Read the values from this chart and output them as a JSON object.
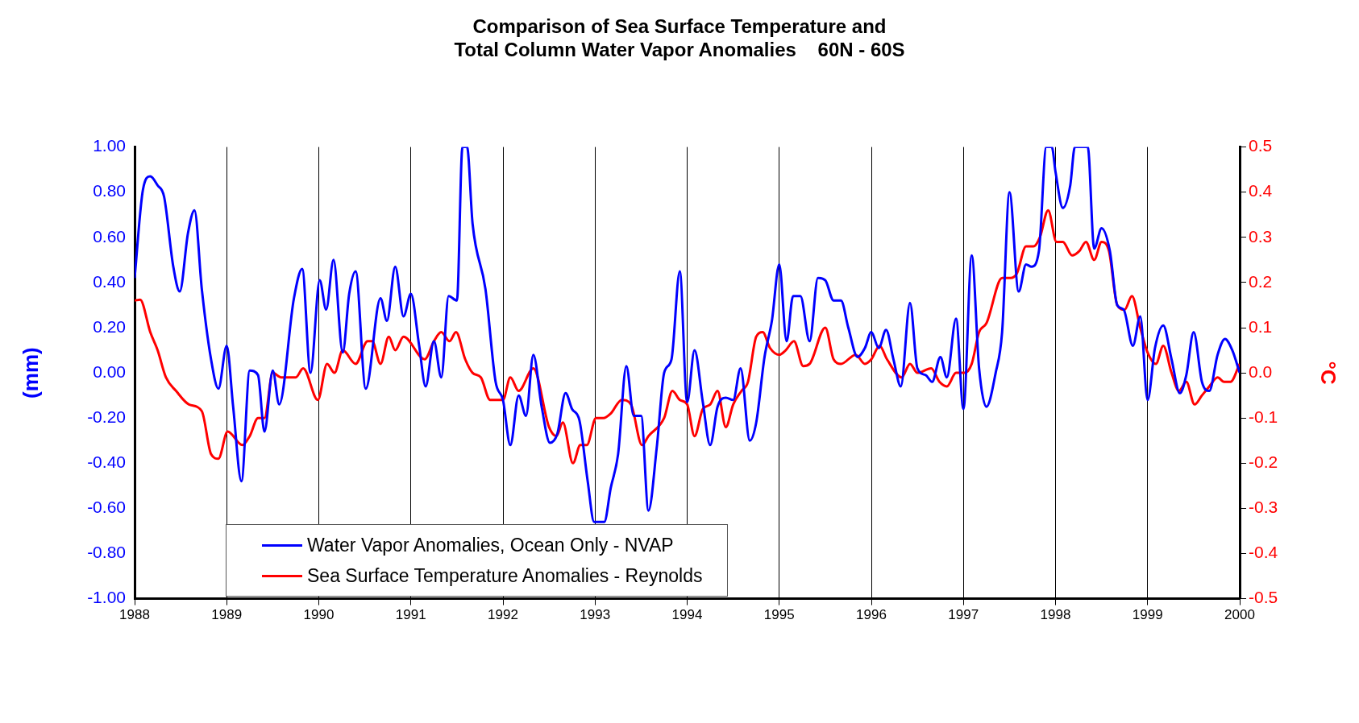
{
  "chart_data": {
    "type": "line",
    "title": "Comparison of Sea Surface Temperature and\nTotal Column Water Vapor Anomalies    60N - 60S",
    "ylabel": "(mm)",
    "y2label": "°C",
    "xlim": [
      1988,
      2000
    ],
    "xticks": [
      1988,
      1989,
      1990,
      1991,
      1992,
      1993,
      1994,
      1995,
      1996,
      1997,
      1998,
      1999,
      2000
    ],
    "ylim": [
      -1,
      1
    ],
    "yticks": [
      {
        "value": -1,
        "label": "-1.00"
      },
      {
        "value": -0.8,
        "label": "-0.80"
      },
      {
        "value": -0.6,
        "label": "-0.60"
      },
      {
        "value": -0.4,
        "label": "-0.40"
      },
      {
        "value": -0.2,
        "label": "-0.20"
      },
      {
        "value": 0,
        "label": "0.00"
      },
      {
        "value": 0.2,
        "label": "0.20"
      },
      {
        "value": 0.4,
        "label": "0.40"
      },
      {
        "value": 0.6,
        "label": "0.60"
      },
      {
        "value": 0.8,
        "label": "0.80"
      },
      {
        "value": 1,
        "label": "1.00"
      }
    ],
    "y2lim": [
      -0.5,
      0.5
    ],
    "y2ticks": [
      -0.5,
      -0.4,
      -0.3,
      -0.2,
      -0.1,
      {
        "value": 0,
        "label": "0.0"
      },
      0.1,
      0.2,
      0.3,
      0.4,
      0.5
    ],
    "grid": "x",
    "legend": "bottom",
    "marker": "none",
    "line_style": "solid",
    "series": [
      {
        "name": "Water Vapor Anomalies, Ocean Only - NVAP",
        "color": "#0000ff",
        "x": [
          1988.0,
          1988.09,
          1988.17,
          1988.25,
          1988.32,
          1988.42,
          1988.49,
          1988.58,
          1988.65,
          1988.73,
          1988.83,
          1988.91,
          1989.0,
          1989.07,
          1989.16,
          1989.25,
          1989.34,
          1989.41,
          1989.5,
          1989.57,
          1989.73,
          1989.82,
          1989.91,
          1990.01,
          1990.08,
          1990.16,
          1990.26,
          1990.33,
          1990.4,
          1990.51,
          1990.67,
          1990.74,
          1990.83,
          1990.92,
          1991.0,
          1991.09,
          1991.16,
          1991.25,
          1991.33,
          1991.41,
          1991.5,
          1991.56,
          1991.61,
          1991.67,
          1991.81,
          1991.92,
          1992.0,
          1992.08,
          1992.17,
          1992.25,
          1992.33,
          1992.42,
          1992.51,
          1992.59,
          1992.68,
          1992.75,
          1992.83,
          1992.92,
          1992.99,
          1993.1,
          1993.17,
          1993.25,
          1993.34,
          1993.42,
          1993.5,
          1993.58,
          1993.67,
          1993.75,
          1993.83,
          1993.92,
          1994.0,
          1994.08,
          1994.17,
          1994.25,
          1994.33,
          1994.42,
          1994.5,
          1994.58,
          1994.68,
          1994.75,
          1994.84,
          1994.92,
          1995.0,
          1995.08,
          1995.15,
          1995.23,
          1995.33,
          1995.42,
          1995.5,
          1995.59,
          1995.67,
          1995.75,
          1995.85,
          1995.93,
          1996.0,
          1996.08,
          1996.16,
          1996.24,
          1996.32,
          1996.42,
          1996.5,
          1996.59,
          1996.66,
          1996.75,
          1996.82,
          1996.92,
          1997.0,
          1997.09,
          1997.17,
          1997.25,
          1997.35,
          1997.42,
          1997.5,
          1997.6,
          1997.68,
          1997.74,
          1997.82,
          1997.9,
          1997.96,
          1998.0,
          1998.08,
          1998.16,
          1998.21,
          1998.35,
          1998.42,
          1998.5,
          1998.59,
          1998.67,
          1998.74,
          1998.84,
          1998.92,
          1999.0,
          1999.08,
          1999.17,
          1999.26,
          1999.35,
          1999.42,
          1999.5,
          1999.59,
          1999.67,
          1999.76,
          1999.84,
          1999.92,
          2000.0
        ],
        "values": [
          0.42,
          0.81,
          0.87,
          0.83,
          0.78,
          0.47,
          0.36,
          0.62,
          0.72,
          0.37,
          0.06,
          -0.07,
          0.12,
          -0.15,
          -0.48,
          0.01,
          -0.01,
          -0.26,
          0.01,
          -0.14,
          0.33,
          0.46,
          0.0,
          0.41,
          0.28,
          0.5,
          0.09,
          0.35,
          0.45,
          -0.07,
          0.33,
          0.23,
          0.47,
          0.25,
          0.35,
          0.12,
          -0.06,
          0.14,
          -0.02,
          0.34,
          0.32,
          1.0,
          1.0,
          0.66,
          0.37,
          -0.04,
          -0.12,
          -0.32,
          -0.1,
          -0.19,
          0.08,
          -0.15,
          -0.31,
          -0.27,
          -0.09,
          -0.16,
          -0.21,
          -0.48,
          -0.66,
          -0.66,
          -0.51,
          -0.36,
          0.03,
          -0.19,
          -0.19,
          -0.61,
          -0.33,
          0.0,
          0.06,
          0.45,
          -0.13,
          0.1,
          -0.13,
          -0.32,
          -0.15,
          -0.11,
          -0.12,
          0.02,
          -0.3,
          -0.22,
          0.07,
          0.23,
          0.48,
          0.14,
          0.34,
          0.34,
          0.14,
          0.42,
          0.41,
          0.32,
          0.32,
          0.2,
          0.07,
          0.11,
          0.18,
          0.11,
          0.19,
          0.06,
          -0.06,
          0.31,
          0.02,
          -0.01,
          -0.04,
          0.07,
          -0.02,
          0.24,
          -0.16,
          0.52,
          0.02,
          -0.15,
          0.0,
          0.18,
          0.8,
          0.36,
          0.48,
          0.47,
          0.54,
          1.0,
          1.0,
          0.89,
          0.73,
          0.83,
          1.0,
          1.0,
          0.55,
          0.64,
          0.54,
          0.3,
          0.28,
          0.12,
          0.25,
          -0.12,
          0.11,
          0.21,
          0.06,
          -0.09,
          -0.01,
          0.18,
          -0.04,
          -0.08,
          0.08,
          0.15,
          0.1,
          0.0
        ]
      },
      {
        "name": "Sea Surface Temperature Anomalies - Reynolds",
        "color": "#ff0000",
        "axis": "y2",
        "x": [
          1988.0,
          1988.06,
          1988.17,
          1988.25,
          1988.34,
          1988.45,
          1988.59,
          1988.73,
          1988.83,
          1988.91,
          1989.01,
          1989.17,
          1989.25,
          1989.34,
          1989.41,
          1989.5,
          1989.59,
          1989.75,
          1989.83,
          1989.99,
          1990.09,
          1990.17,
          1990.26,
          1990.4,
          1990.53,
          1990.58,
          1990.67,
          1990.76,
          1990.83,
          1990.92,
          1991.15,
          1991.25,
          1991.33,
          1991.42,
          1991.49,
          1991.59,
          1991.67,
          1991.76,
          1991.86,
          1992.0,
          1992.08,
          1992.17,
          1992.33,
          1992.5,
          1992.58,
          1992.65,
          1992.76,
          1992.84,
          1992.91,
          1993.01,
          1993.09,
          1993.17,
          1993.29,
          1993.39,
          1993.51,
          1993.58,
          1993.75,
          1993.84,
          1993.92,
          1994.0,
          1994.08,
          1994.17,
          1994.25,
          1994.33,
          1994.42,
          1994.5,
          1994.59,
          1994.66,
          1994.75,
          1994.82,
          1994.9,
          1995.0,
          1995.07,
          1995.16,
          1995.26,
          1995.33,
          1995.5,
          1995.59,
          1995.67,
          1995.83,
          1995.93,
          1996.0,
          1996.09,
          1996.17,
          1996.33,
          1996.42,
          1996.5,
          1996.65,
          1996.74,
          1996.82,
          1996.92,
          1997.01,
          1997.09,
          1997.17,
          1997.25,
          1997.42,
          1997.51,
          1997.58,
          1997.68,
          1997.76,
          1997.83,
          1997.92,
          1998.01,
          1998.08,
          1998.18,
          1998.26,
          1998.33,
          1998.42,
          1998.5,
          1998.58,
          1998.67,
          1998.75,
          1998.83,
          1998.92,
          1999.0,
          1999.09,
          1999.17,
          1999.26,
          1999.34,
          1999.42,
          1999.51,
          1999.59,
          1999.67,
          1999.76,
          1999.83,
          1999.9,
          2000.0
        ],
        "values": [
          0.16,
          0.162,
          0.09,
          0.05,
          -0.01,
          -0.04,
          -0.07,
          -0.085,
          -0.18,
          -0.19,
          -0.13,
          -0.16,
          -0.14,
          -0.1,
          -0.1,
          0.0,
          -0.01,
          -0.01,
          0.01,
          -0.06,
          0.02,
          0.0,
          0.05,
          0.02,
          0.07,
          0.07,
          0.02,
          0.08,
          0.05,
          0.08,
          0.03,
          0.07,
          0.09,
          0.07,
          0.09,
          0.03,
          0.0,
          -0.01,
          -0.06,
          -0.06,
          -0.01,
          -0.04,
          0.01,
          -0.12,
          -0.14,
          -0.11,
          -0.2,
          -0.16,
          -0.16,
          -0.1,
          -0.1,
          -0.09,
          -0.06,
          -0.07,
          -0.16,
          -0.14,
          -0.1,
          -0.04,
          -0.06,
          -0.07,
          -0.14,
          -0.08,
          -0.07,
          -0.04,
          -0.12,
          -0.07,
          -0.04,
          -0.02,
          0.08,
          0.09,
          0.055,
          0.04,
          0.05,
          0.07,
          0.015,
          0.02,
          0.1,
          0.03,
          0.02,
          0.04,
          0.02,
          0.03,
          0.06,
          0.03,
          -0.01,
          0.02,
          0.0,
          0.01,
          -0.02,
          -0.03,
          0.0,
          0.0,
          0.02,
          0.09,
          0.11,
          0.21,
          0.21,
          0.22,
          0.28,
          0.28,
          0.3,
          0.36,
          0.29,
          0.29,
          0.26,
          0.27,
          0.29,
          0.25,
          0.29,
          0.27,
          0.15,
          0.14,
          0.17,
          0.1,
          0.045,
          0.02,
          0.06,
          0.0,
          -0.04,
          -0.02,
          -0.07,
          -0.05,
          -0.03,
          -0.01,
          -0.02,
          -0.02,
          0.02
        ]
      }
    ]
  }
}
